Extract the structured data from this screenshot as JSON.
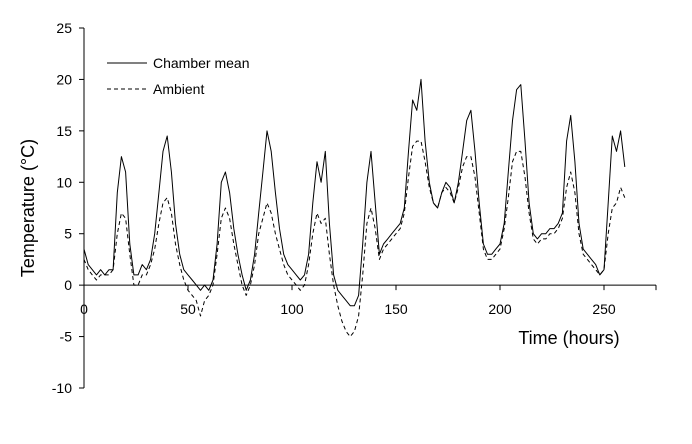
{
  "chart_data": {
    "type": "line",
    "xlabel": "Time (hours)",
    "ylabel": "Temperature (°C)",
    "xlim": [
      0,
      275
    ],
    "ylim": [
      -10,
      25
    ],
    "x_ticks": [
      0,
      50,
      100,
      150,
      200,
      250
    ],
    "y_ticks": [
      -10,
      -5,
      0,
      5,
      10,
      15,
      20,
      25
    ],
    "grid": false,
    "legend_position": "top-left",
    "series": [
      {
        "name": "Chamber mean",
        "line_style": "solid",
        "color": "#000000",
        "x": [
          0,
          2,
          4,
          6,
          8,
          10,
          12,
          14,
          16,
          18,
          20,
          22,
          24,
          26,
          28,
          30,
          32,
          34,
          36,
          38,
          40,
          42,
          44,
          46,
          48,
          50,
          52,
          54,
          56,
          58,
          60,
          62,
          64,
          66,
          68,
          70,
          72,
          74,
          76,
          78,
          80,
          82,
          84,
          86,
          88,
          90,
          92,
          94,
          96,
          98,
          100,
          102,
          104,
          106,
          108,
          110,
          112,
          114,
          116,
          118,
          120,
          122,
          124,
          126,
          128,
          130,
          132,
          134,
          136,
          138,
          140,
          142,
          144,
          146,
          148,
          150,
          152,
          154,
          156,
          158,
          160,
          162,
          164,
          166,
          168,
          170,
          172,
          174,
          176,
          178,
          180,
          182,
          184,
          186,
          188,
          190,
          192,
          194,
          196,
          198,
          200,
          202,
          204,
          206,
          208,
          210,
          212,
          214,
          216,
          218,
          220,
          222,
          224,
          226,
          228,
          230,
          232,
          234,
          236,
          238,
          240,
          242,
          244,
          246,
          248,
          250,
          252,
          254,
          256,
          258,
          260,
          262
        ],
        "y": [
          3.5,
          2.0,
          1.5,
          1.0,
          1.5,
          1.0,
          1.5,
          1.5,
          9.0,
          12.5,
          11.0,
          4.0,
          1.0,
          1.0,
          2.0,
          1.5,
          2.5,
          5.0,
          9.0,
          13.0,
          14.5,
          11.0,
          6.0,
          3.0,
          1.5,
          1.0,
          0.5,
          0.0,
          -0.5,
          0.0,
          -0.5,
          0.5,
          4.0,
          10.0,
          11.0,
          9.0,
          5.5,
          3.0,
          1.0,
          -0.5,
          0.5,
          3.0,
          7.0,
          11.0,
          15.0,
          13.0,
          9.0,
          5.5,
          3.0,
          2.0,
          1.5,
          1.0,
          0.5,
          1.0,
          3.0,
          8.0,
          12.0,
          10.0,
          13.0,
          6.0,
          1.0,
          -0.5,
          -1.0,
          -1.5,
          -2.0,
          -2.0,
          -1.0,
          4.0,
          10.0,
          13.0,
          8.0,
          3.0,
          4.0,
          4.5,
          5.0,
          5.5,
          6.0,
          7.5,
          13.0,
          18.0,
          17.0,
          20.0,
          14.0,
          10.0,
          8.0,
          7.5,
          9.0,
          10.0,
          9.5,
          8.0,
          10.0,
          13.0,
          16.0,
          17.0,
          13.0,
          8.0,
          4.0,
          3.0,
          3.0,
          3.5,
          4.0,
          6.0,
          11.0,
          16.0,
          19.0,
          19.5,
          14.0,
          8.0,
          5.0,
          4.5,
          5.0,
          5.0,
          5.5,
          5.5,
          6.0,
          7.0,
          14.0,
          16.5,
          12.0,
          6.0,
          3.5,
          3.0,
          2.5,
          2.0,
          1.0,
          1.5,
          8.0,
          14.5,
          13.0,
          15.0,
          11.5,
          null
        ]
      },
      {
        "name": "Ambient",
        "line_style": "dashed",
        "color": "#000000",
        "x": [
          0,
          2,
          4,
          6,
          8,
          10,
          12,
          14,
          16,
          18,
          20,
          22,
          24,
          26,
          28,
          30,
          32,
          34,
          36,
          38,
          40,
          42,
          44,
          46,
          48,
          50,
          52,
          54,
          56,
          58,
          60,
          62,
          64,
          66,
          68,
          70,
          72,
          74,
          76,
          78,
          80,
          82,
          84,
          86,
          88,
          90,
          92,
          94,
          96,
          98,
          100,
          102,
          104,
          106,
          108,
          110,
          112,
          114,
          116,
          118,
          120,
          122,
          124,
          126,
          128,
          130,
          132,
          134,
          136,
          138,
          140,
          142,
          144,
          146,
          148,
          150,
          152,
          154,
          156,
          158,
          160,
          162,
          164,
          166,
          168,
          170,
          172,
          174,
          176,
          178,
          180,
          182,
          184,
          186,
          188,
          190,
          192,
          194,
          196,
          198,
          200,
          202,
          204,
          206,
          208,
          210,
          212,
          214,
          216,
          218,
          220,
          222,
          224,
          226,
          228,
          230,
          232,
          234,
          236,
          238,
          240,
          242,
          244,
          246,
          248,
          250,
          252,
          254,
          256,
          258,
          260,
          262
        ],
        "y": [
          2.5,
          1.5,
          1.0,
          0.5,
          1.0,
          1.0,
          1.0,
          1.5,
          5.0,
          7.0,
          6.5,
          3.0,
          0.0,
          0.0,
          1.0,
          1.0,
          2.0,
          3.5,
          6.0,
          8.0,
          8.5,
          7.0,
          4.0,
          2.0,
          0.5,
          -0.5,
          -1.0,
          -1.5,
          -3.0,
          -1.5,
          -1.0,
          0.0,
          3.0,
          6.5,
          7.5,
          6.5,
          4.0,
          2.0,
          0.0,
          -1.0,
          0.0,
          2.0,
          5.0,
          6.5,
          8.0,
          7.0,
          5.0,
          3.5,
          2.0,
          1.0,
          0.5,
          0.0,
          -0.5,
          0.0,
          2.0,
          5.0,
          7.0,
          6.0,
          6.5,
          3.0,
          0.0,
          -2.0,
          -3.5,
          -4.5,
          -5.0,
          -4.5,
          -3.0,
          1.0,
          6.0,
          7.5,
          5.5,
          2.5,
          3.5,
          4.0,
          4.5,
          5.0,
          5.5,
          7.0,
          10.5,
          13.5,
          14.0,
          14.0,
          12.0,
          9.5,
          8.0,
          7.5,
          9.0,
          9.5,
          9.0,
          8.0,
          9.5,
          11.5,
          12.5,
          12.5,
          10.5,
          7.0,
          3.5,
          2.5,
          2.5,
          3.0,
          3.5,
          5.5,
          8.5,
          12.0,
          13.0,
          13.0,
          10.5,
          7.0,
          4.5,
          4.0,
          4.5,
          4.5,
          5.0,
          5.0,
          5.5,
          6.5,
          9.5,
          11.0,
          9.0,
          5.0,
          3.0,
          2.5,
          2.0,
          1.5,
          1.0,
          1.5,
          5.0,
          7.5,
          8.0,
          9.5,
          8.5,
          null
        ]
      }
    ]
  }
}
